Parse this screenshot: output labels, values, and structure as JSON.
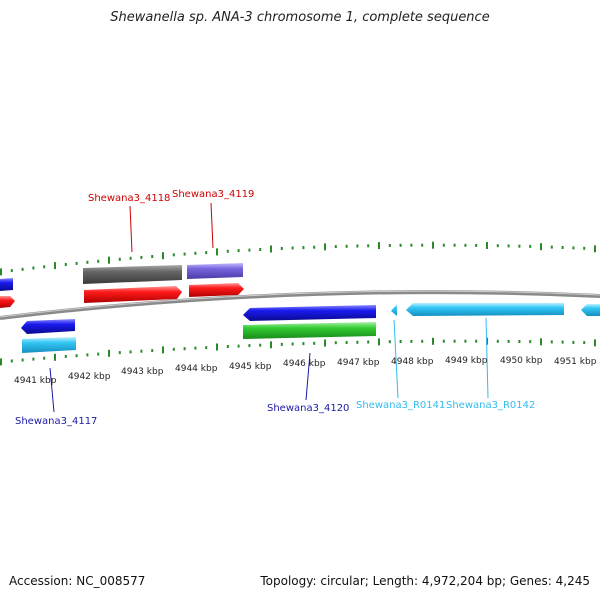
{
  "title": "Shewanella sp. ANA-3 chromosome 1, complete sequence",
  "footer": {
    "accession": "Accession: NC_008577",
    "summary": "Topology: circular; Length: 4,972,204 bp; Genes: 4,245"
  },
  "colors": {
    "backbone": "#888888",
    "tick": "#2a8a2a",
    "cds_red": "#ff1a1a",
    "cds_blue": "#1a1aee",
    "cds_cyan": "#33c7f5",
    "cds_green": "#33cc33",
    "cds_grey": "#666666",
    "cds_purple": "#7766dd"
  },
  "axis_labels": [
    "4941 kbp",
    "4942 kbp",
    "4943 kbp",
    "4944 kbp",
    "4945 kbp",
    "4946 kbp",
    "4947 kbp",
    "4948 kbp",
    "4949 kbp",
    "4950 kbp",
    "4951 kbp"
  ],
  "gene_labels": [
    {
      "text": "Shewana3_4118",
      "color": "#cc0000"
    },
    {
      "text": "Shewana3_4119",
      "color": "#cc0000"
    },
    {
      "text": "Shewana3_4117",
      "color": "#1a1aaa"
    },
    {
      "text": "Shewana3_4120",
      "color": "#1a1aaa"
    },
    {
      "text": "Shewana3_R0141",
      "color": "#33bbee"
    },
    {
      "text": "Shewana3_R0142",
      "color": "#33bbee"
    }
  ]
}
